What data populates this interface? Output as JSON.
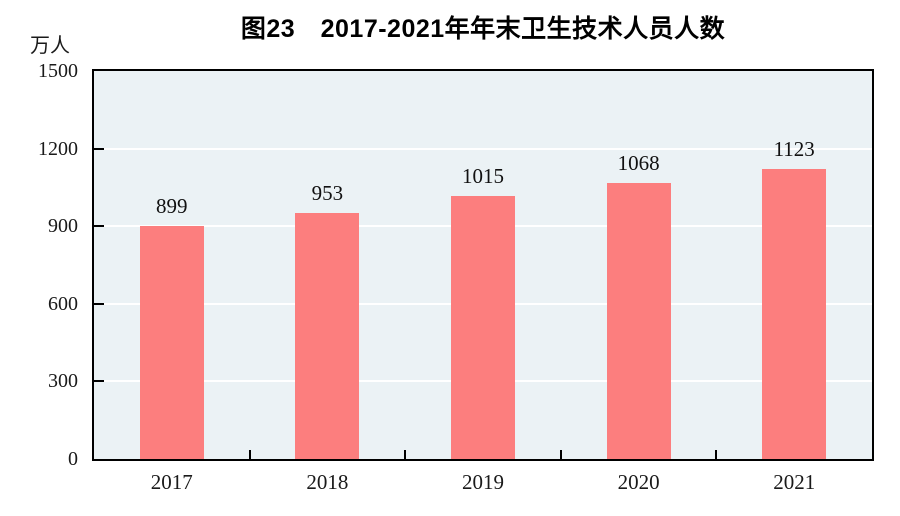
{
  "page": {
    "background": "#ffffff"
  },
  "chart_data": {
    "type": "bar",
    "title": "图23　2017-2021年年末卫生技术人员人数",
    "unit_label": "万人",
    "categories": [
      "2017",
      "2018",
      "2019",
      "2020",
      "2021"
    ],
    "values": [
      899,
      953,
      1015,
      1068,
      1123
    ],
    "value_labels": [
      "899",
      "953",
      "1015",
      "1068",
      "1123"
    ],
    "ylim": [
      0,
      1500
    ],
    "yticks": [
      0,
      300,
      600,
      900,
      1200,
      1500
    ],
    "grid": true,
    "legend": "none",
    "colors": {
      "bar": "#FC7E7E",
      "plot_background": "#EBF2F5",
      "gridline": "#FFFFFF",
      "axis": "#000000",
      "text": "#1a1a1a"
    }
  }
}
